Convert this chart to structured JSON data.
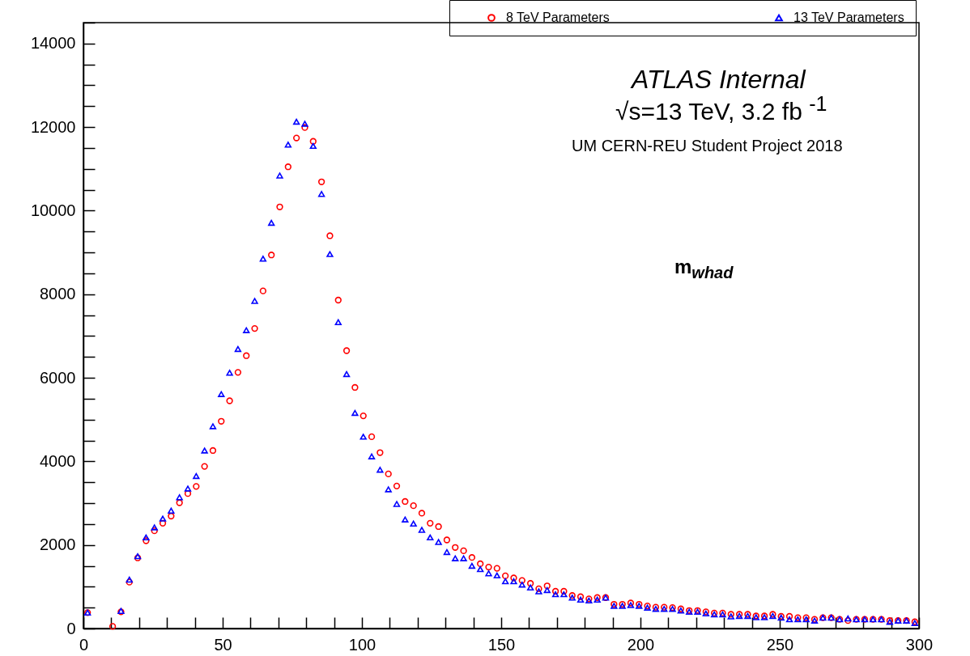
{
  "chart_data": {
    "type": "scatter",
    "annotations": [
      "ATLAS Internal",
      "√s=13 TeV, 3.2 fb $^{-1}$",
      "UM CERN-REU Student Project 2018",
      "m$_{whad}$"
    ],
    "series": [
      {
        "name": "8 TeV Parameters",
        "color": "#ff0000",
        "marker": "circle",
        "x": [
          1.5,
          10.5,
          13.5,
          16.5,
          19.5,
          22.5,
          25.5,
          28.5,
          31.5,
          34.5,
          37.5,
          40.5,
          43.5,
          46.5,
          49.5,
          52.5,
          55.5,
          58.5,
          61.5,
          64.5,
          67.5,
          70.5,
          73.5,
          76.5,
          79.5,
          82.5,
          85.5,
          88.5,
          91.5,
          94.5,
          97.5,
          100.5,
          103.5,
          106.5,
          109.5,
          112.5,
          115.5,
          118.5,
          121.5,
          124.5,
          127.5,
          130.5,
          133.5,
          136.5,
          139.5,
          142.5,
          145.5,
          148.5,
          151.5,
          154.5,
          157.5,
          160.5,
          163.5,
          166.5,
          169.5,
          172.5,
          175.5,
          178.5,
          181.5,
          184.5,
          187.5,
          190.5,
          193.5,
          196.5,
          199.5,
          202.5,
          205.5,
          208.5,
          211.5,
          214.5,
          217.5,
          220.5,
          223.5,
          226.5,
          229.5,
          232.5,
          235.5,
          238.5,
          241.5,
          244.5,
          247.5,
          250.5,
          253.5,
          256.5,
          259.5,
          262.5,
          265.5,
          268.5,
          271.5,
          274.5,
          277.5,
          280.5,
          283.5,
          286.5,
          289.5,
          292.5,
          295.5,
          298.5
        ],
        "values": [
          380,
          50,
          400,
          1110,
          1690,
          2100,
          2340,
          2520,
          2690,
          3010,
          3230,
          3400,
          3880,
          4260,
          4960,
          5450,
          6130,
          6530,
          7180,
          8080,
          8940,
          10090,
          11050,
          11740,
          11990,
          11660,
          10690,
          9400,
          7860,
          6650,
          5770,
          5090,
          4590,
          4210,
          3700,
          3410,
          3040,
          2940,
          2760,
          2520,
          2440,
          2120,
          1940,
          1860,
          1700,
          1550,
          1470,
          1440,
          1260,
          1210,
          1150,
          1080,
          950,
          1020,
          890,
          890,
          790,
          760,
          710,
          740,
          740,
          580,
          580,
          610,
          580,
          540,
          510,
          510,
          500,
          470,
          430,
          430,
          400,
          370,
          370,
          340,
          340,
          340,
          300,
          300,
          340,
          290,
          290,
          260,
          260,
          220,
          260,
          260,
          220,
          190,
          220,
          220,
          220,
          220,
          190,
          190,
          190,
          160
        ]
      },
      {
        "name": "13 TeV Parameters",
        "color": "#0000ff",
        "marker": "triangle",
        "x": [
          1.5,
          13.5,
          16.5,
          19.5,
          22.5,
          25.5,
          28.5,
          31.5,
          34.5,
          37.5,
          40.5,
          43.5,
          46.5,
          49.5,
          52.5,
          55.5,
          58.5,
          61.5,
          64.5,
          67.5,
          70.5,
          73.5,
          76.5,
          79.5,
          82.5,
          85.5,
          88.5,
          91.5,
          94.5,
          97.5,
          100.5,
          103.5,
          106.5,
          109.5,
          112.5,
          115.5,
          118.5,
          121.5,
          124.5,
          127.5,
          130.5,
          133.5,
          136.5,
          139.5,
          142.5,
          145.5,
          148.5,
          151.5,
          154.5,
          157.5,
          160.5,
          163.5,
          166.5,
          169.5,
          172.5,
          175.5,
          178.5,
          181.5,
          184.5,
          187.5,
          190.5,
          193.5,
          196.5,
          199.5,
          202.5,
          205.5,
          208.5,
          211.5,
          214.5,
          217.5,
          220.5,
          223.5,
          226.5,
          229.5,
          232.5,
          235.5,
          238.5,
          241.5,
          244.5,
          247.5,
          250.5,
          253.5,
          256.5,
          259.5,
          262.5,
          265.5,
          268.5,
          271.5,
          274.5,
          277.5,
          280.5,
          283.5,
          286.5,
          289.5,
          292.5,
          295.5,
          298.5
        ],
        "values": [
          380,
          420,
          1170,
          1730,
          2180,
          2420,
          2630,
          2820,
          3140,
          3350,
          3650,
          4260,
          4840,
          5610,
          6120,
          6690,
          7140,
          7840,
          8850,
          9710,
          10840,
          11580,
          12130,
          12080,
          11550,
          10400,
          8960,
          7330,
          6090,
          5160,
          4590,
          4120,
          3800,
          3330,
          2980,
          2610,
          2510,
          2360,
          2180,
          2070,
          1830,
          1680,
          1680,
          1500,
          1420,
          1320,
          1270,
          1130,
          1130,
          1050,
          980,
          890,
          920,
          820,
          820,
          740,
          690,
          670,
          690,
          740,
          540,
          540,
          560,
          540,
          500,
          470,
          470,
          470,
          430,
          400,
          400,
          360,
          340,
          340,
          290,
          300,
          300,
          270,
          270,
          300,
          260,
          220,
          220,
          220,
          190,
          260,
          260,
          220,
          240,
          220,
          220,
          220,
          220,
          160,
          190,
          190,
          130
        ]
      }
    ],
    "xlim": [
      0,
      300
    ],
    "xticks": [
      0,
      {
        "value": 10,
        "label": null
      },
      {
        "value": 20,
        "label": null
      },
      {
        "value": 30,
        "label": null
      },
      {
        "value": 40,
        "label": null
      },
      50,
      {
        "value": 60,
        "label": null
      },
      {
        "value": 70,
        "label": null
      },
      {
        "value": 80,
        "label": null
      },
      {
        "value": 90,
        "label": null
      },
      100,
      {
        "value": 110,
        "label": null
      },
      {
        "value": 120,
        "label": null
      },
      {
        "value": 130,
        "label": null
      },
      {
        "value": 140,
        "label": null
      },
      150,
      {
        "value": 160,
        "label": null
      },
      {
        "value": 170,
        "label": null
      },
      {
        "value": 180,
        "label": null
      },
      {
        "value": 190,
        "label": null
      },
      200,
      {
        "value": 210,
        "label": null
      },
      {
        "value": 220,
        "label": null
      },
      {
        "value": 230,
        "label": null
      },
      {
        "value": 240,
        "label": null
      },
      250,
      {
        "value": 260,
        "label": null
      },
      {
        "value": 270,
        "label": null
      },
      {
        "value": 280,
        "label": null
      },
      {
        "value": 290,
        "label": null
      },
      300
    ],
    "ylim": [
      0,
      14500
    ],
    "yticks": [
      0,
      {
        "value": 500,
        "label": null
      },
      {
        "value": 1000,
        "label": null
      },
      {
        "value": 1500,
        "label": null
      },
      2000,
      {
        "value": 2500,
        "label": null
      },
      {
        "value": 3000,
        "label": null
      },
      {
        "value": 3500,
        "label": null
      },
      4000,
      {
        "value": 4500,
        "label": null
      },
      {
        "value": 5000,
        "label": null
      },
      {
        "value": 5500,
        "label": null
      },
      6000,
      {
        "value": 6500,
        "label": null
      },
      {
        "value": 7000,
        "label": null
      },
      {
        "value": 7500,
        "label": null
      },
      8000,
      {
        "value": 8500,
        "label": null
      },
      {
        "value": 9000,
        "label": null
      },
      {
        "value": 9500,
        "label": null
      },
      10000,
      {
        "value": 10500,
        "label": null
      },
      {
        "value": 11000,
        "label": null
      },
      {
        "value": 11500,
        "label": null
      },
      12000,
      {
        "value": 12500,
        "label": null
      },
      {
        "value": 13000,
        "label": null
      },
      {
        "value": 13500,
        "label": null
      },
      14000,
      {
        "value": 14500,
        "label": null
      }
    ],
    "grid": false,
    "legend": "top right"
  }
}
